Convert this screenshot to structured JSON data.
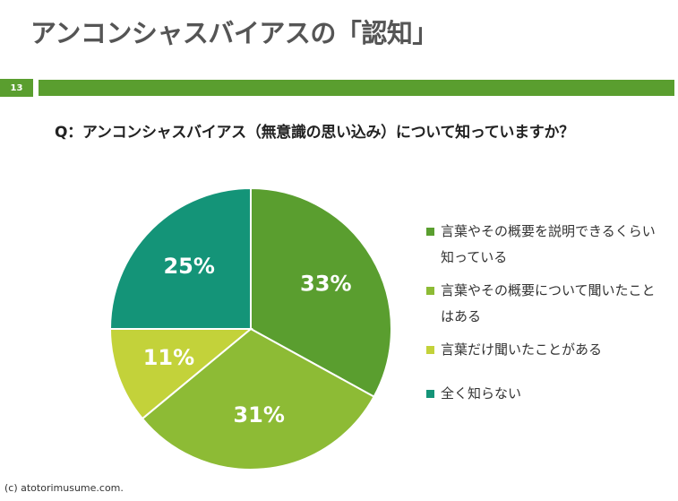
{
  "slide": {
    "title": "アンコンシャスバイアスの「認知」",
    "page_number": "13",
    "question": "Q：アンコンシャスバイアス（無意識の思い込み）について知っていますか？",
    "copyright": "(c) atotorimusume.com."
  },
  "chart_data": {
    "type": "pie",
    "categories": [
      "言葉やその概要を説明できるくらい知っている",
      "言葉やその概要について聞いたことはある",
      "言葉だけ聞いたことがある",
      "全く知らない"
    ],
    "values": [
      33,
      31,
      11,
      25
    ],
    "labels": [
      "33%",
      "31%",
      "11%",
      "25%"
    ],
    "colors": [
      "#5a9e2f",
      "#8dbb35",
      "#c3d23a",
      "#149478"
    ],
    "legend_position": "right"
  }
}
